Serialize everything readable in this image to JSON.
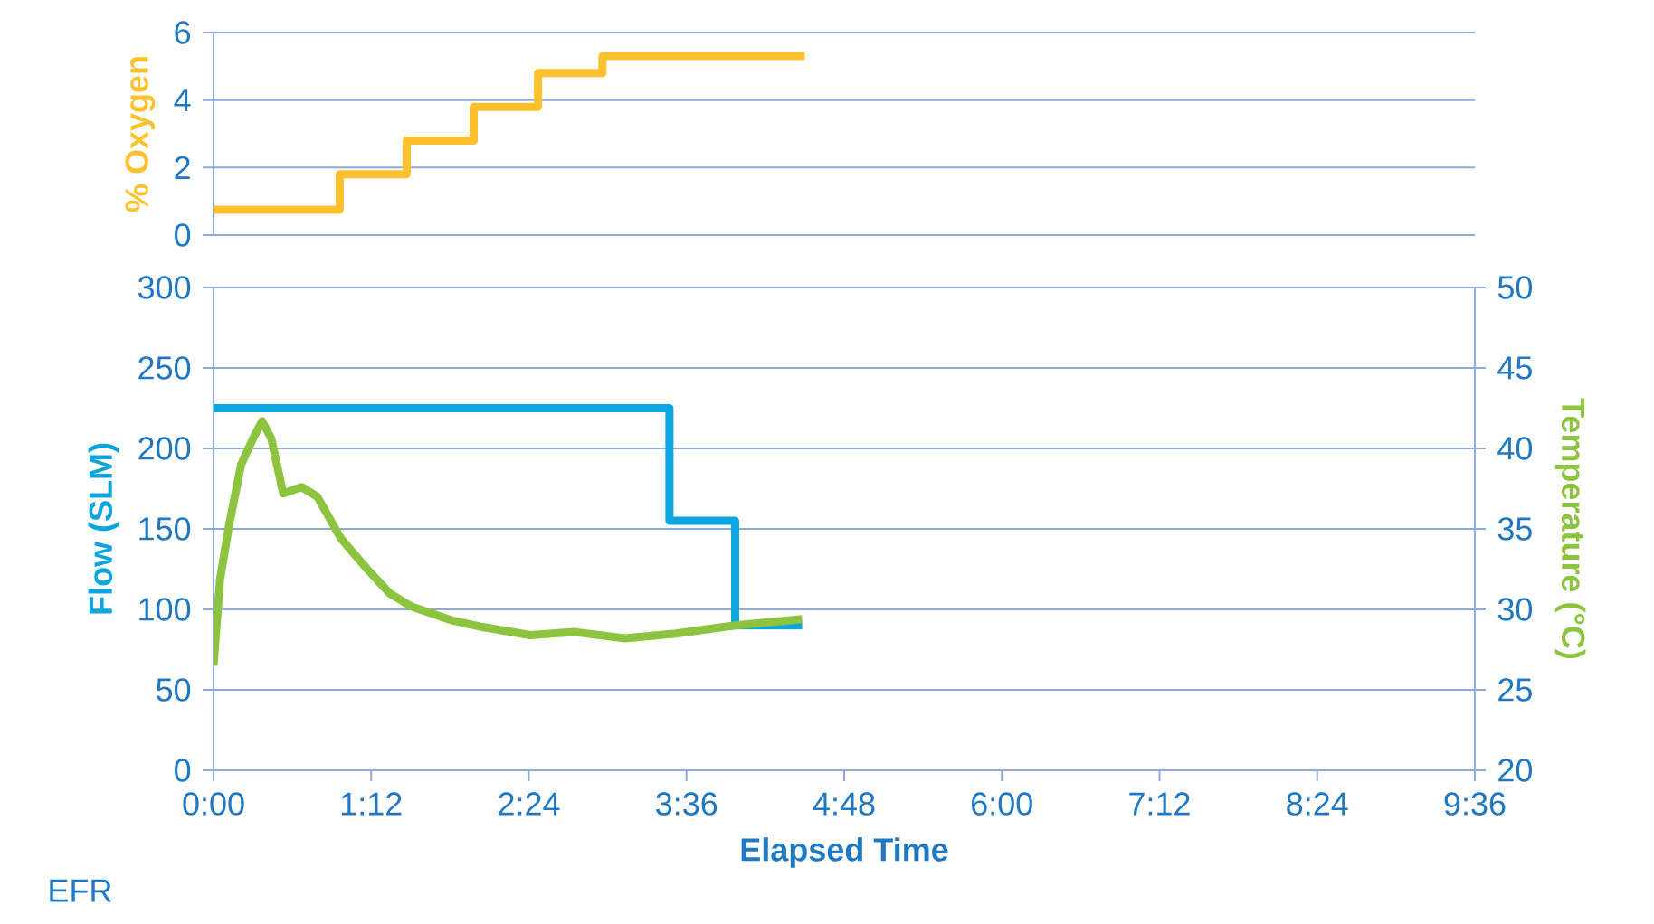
{
  "chart_data": [
    {
      "type": "step",
      "ylabel": "% Oxygen",
      "xlim": [
        0,
        9.6
      ],
      "ylim": [
        0,
        6
      ],
      "yticks": [
        0,
        2,
        4,
        6
      ],
      "tick_labels": "y",
      "grid": "y",
      "series": [
        {
          "color": "#fdc12e",
          "x": [
            0,
            0.96,
            1.47,
            1.98,
            2.47,
            2.96,
            4.5
          ],
          "values": [
            0.75,
            1.8,
            2.8,
            3.8,
            4.8,
            5.3,
            5.3
          ]
        }
      ]
    },
    {
      "type": "line",
      "xlabel": "Elapsed Time",
      "ylabel": "Flow (SLM)",
      "y2label": "Temperature (°C)",
      "xlim": [
        0,
        9.6
      ],
      "ylim": [
        0,
        300
      ],
      "yticks": [
        0,
        50,
        100,
        150,
        200,
        250,
        300
      ],
      "y2lim": [
        20,
        50
      ],
      "y2ticks": [
        20,
        25,
        30,
        35,
        40,
        45,
        50
      ],
      "xticks": [
        {
          "value": 0,
          "label": "0:00"
        },
        {
          "value": 1.2,
          "label": "1:12"
        },
        {
          "value": 2.4,
          "label": "2:24"
        },
        {
          "value": 3.6,
          "label": "3:36"
        },
        {
          "value": 4.8,
          "label": "4:48"
        },
        {
          "value": 6,
          "label": "6:00"
        },
        {
          "value": 7.2,
          "label": "7:12"
        },
        {
          "value": 8.4,
          "label": "8:24"
        },
        {
          "value": 9.6,
          "label": "9:36"
        }
      ],
      "grid": "y",
      "annotations": [
        "EFR"
      ],
      "series": [
        {
          "type": "step",
          "color": "#0ba5e0",
          "x": [
            0,
            3.47,
            3.97,
            4.48
          ],
          "values": [
            225,
            155,
            90,
            90
          ]
        },
        {
          "type": "line",
          "axis": "y2",
          "color": "#8dc43f",
          "x": [
            0,
            0.05,
            0.12,
            0.21,
            0.3,
            0.37,
            0.44,
            0.53,
            0.67,
            0.79,
            0.97,
            1.17,
            1.34,
            1.5,
            1.82,
            2.05,
            2.41,
            2.74,
            3.13,
            3.52,
            3.97,
            4.48
          ],
          "values": [
            26.5,
            31.9,
            35.3,
            39,
            40.6,
            41.7,
            40.6,
            37.2,
            37.6,
            37,
            34.4,
            32.5,
            31,
            30.2,
            29.3,
            28.9,
            28.4,
            28.6,
            28.2,
            28.5,
            29,
            29.4
          ]
        }
      ]
    }
  ]
}
